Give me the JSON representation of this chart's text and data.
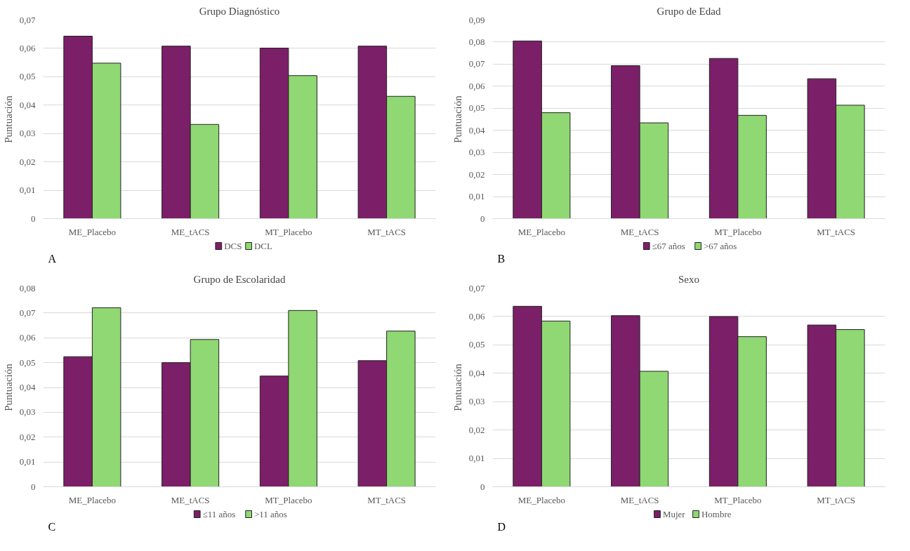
{
  "chart_data": [
    {
      "type": "bar",
      "title": "Grupo Diagnóstico",
      "ylabel": "Puntuación",
      "categories": [
        "ME_Placebo",
        "ME_tACS",
        "MT_Placebo",
        "MT_tACS"
      ],
      "series": [
        {
          "name": "DCS",
          "color": "#7b1f69",
          "values": [
            0.0643,
            0.0608,
            0.0601,
            0.0608
          ]
        },
        {
          "name": "DCL",
          "color": "#8fd873",
          "values": [
            0.0548,
            0.0332,
            0.0504,
            0.0431
          ]
        }
      ],
      "ylim": [
        0,
        0.07
      ],
      "yticks": [
        0,
        {
          "value": 0.01,
          "label": "0,01"
        },
        {
          "value": 0.02,
          "label": "0,02"
        },
        {
          "value": 0.03,
          "label": "0,03"
        },
        {
          "value": 0.04,
          "label": "0,04"
        },
        {
          "value": 0.05,
          "label": "0,05"
        },
        {
          "value": 0.06,
          "label": "0,06"
        },
        {
          "value": 0.07,
          "label": "0,07"
        }
      ],
      "grid": "y",
      "legend": "bottom",
      "annotations": [
        "A"
      ]
    },
    {
      "type": "bar",
      "title": "Grupo de Edad",
      "ylabel": "Puntuación",
      "categories": [
        "ME_Placebo",
        "ME_tACS",
        "MT_Placebo",
        "MT_tACS"
      ],
      "series": [
        {
          "name": "≤67 años",
          "color": "#7b1f69",
          "values": [
            0.0805,
            0.0693,
            0.0726,
            0.0634
          ]
        },
        {
          "name": ">67 años",
          "color": "#8fd873",
          "values": [
            0.048,
            0.0434,
            0.0468,
            0.0514
          ]
        }
      ],
      "ylim": [
        0,
        0.09
      ],
      "yticks": [
        0,
        {
          "value": 0.01,
          "label": "0,01"
        },
        {
          "value": 0.02,
          "label": "0,02"
        },
        {
          "value": 0.03,
          "label": "0,03"
        },
        {
          "value": 0.04,
          "label": "0,04"
        },
        {
          "value": 0.05,
          "label": "0,05"
        },
        {
          "value": 0.06,
          "label": "0,06"
        },
        {
          "value": 0.07,
          "label": "0,07"
        },
        {
          "value": 0.08,
          "label": "0,08"
        },
        {
          "value": 0.09,
          "label": "0,09"
        }
      ],
      "grid": "y",
      "legend": "bottom",
      "annotations": [
        "B"
      ]
    },
    {
      "type": "bar",
      "title": "Grupo de Escolaridad",
      "ylabel": "Puntuación",
      "categories": [
        "ME_Placebo",
        "ME_tACS",
        "MT_Placebo",
        "MT_tACS"
      ],
      "series": [
        {
          "name": "≤11 años",
          "color": "#7b1f69",
          "values": [
            0.0524,
            0.05,
            0.0446,
            0.0508
          ]
        },
        {
          "name": ">11 años",
          "color": "#8fd873",
          "values": [
            0.0721,
            0.0593,
            0.071,
            0.0627
          ]
        }
      ],
      "ylim": [
        0,
        0.08
      ],
      "yticks": [
        0,
        {
          "value": 0.01,
          "label": "0,01"
        },
        {
          "value": 0.02,
          "label": "0,02"
        },
        {
          "value": 0.03,
          "label": "0,03"
        },
        {
          "value": 0.04,
          "label": "0,04"
        },
        {
          "value": 0.05,
          "label": "0,05"
        },
        {
          "value": 0.06,
          "label": "0,06"
        },
        {
          "value": 0.07,
          "label": "0,07"
        },
        {
          "value": 0.08,
          "label": "0,08"
        }
      ],
      "grid": "y",
      "legend": "bottom",
      "annotations": [
        "C"
      ]
    },
    {
      "type": "bar",
      "title": "Sexo",
      "ylabel": "Puntuación",
      "categories": [
        "ME_Placebo",
        "ME_tACS",
        "MT_Placebo",
        "MT_tACS"
      ],
      "series": [
        {
          "name": "Mujer",
          "color": "#7b1f69",
          "values": [
            0.0636,
            0.0603,
            0.06,
            0.057
          ]
        },
        {
          "name": "Hombre",
          "color": "#8fd873",
          "values": [
            0.0584,
            0.0407,
            0.0529,
            0.0554
          ]
        }
      ],
      "ylim": [
        0,
        0.07
      ],
      "yticks": [
        0,
        {
          "value": 0.01,
          "label": "0,01"
        },
        {
          "value": 0.02,
          "label": "0,02"
        },
        {
          "value": 0.03,
          "label": "0,03"
        },
        {
          "value": 0.04,
          "label": "0,04"
        },
        {
          "value": 0.05,
          "label": "0,05"
        },
        {
          "value": 0.06,
          "label": "0,06"
        },
        {
          "value": 0.07,
          "label": "0,07"
        }
      ],
      "grid": "y",
      "legend": "bottom",
      "annotations": [
        "D"
      ]
    }
  ]
}
